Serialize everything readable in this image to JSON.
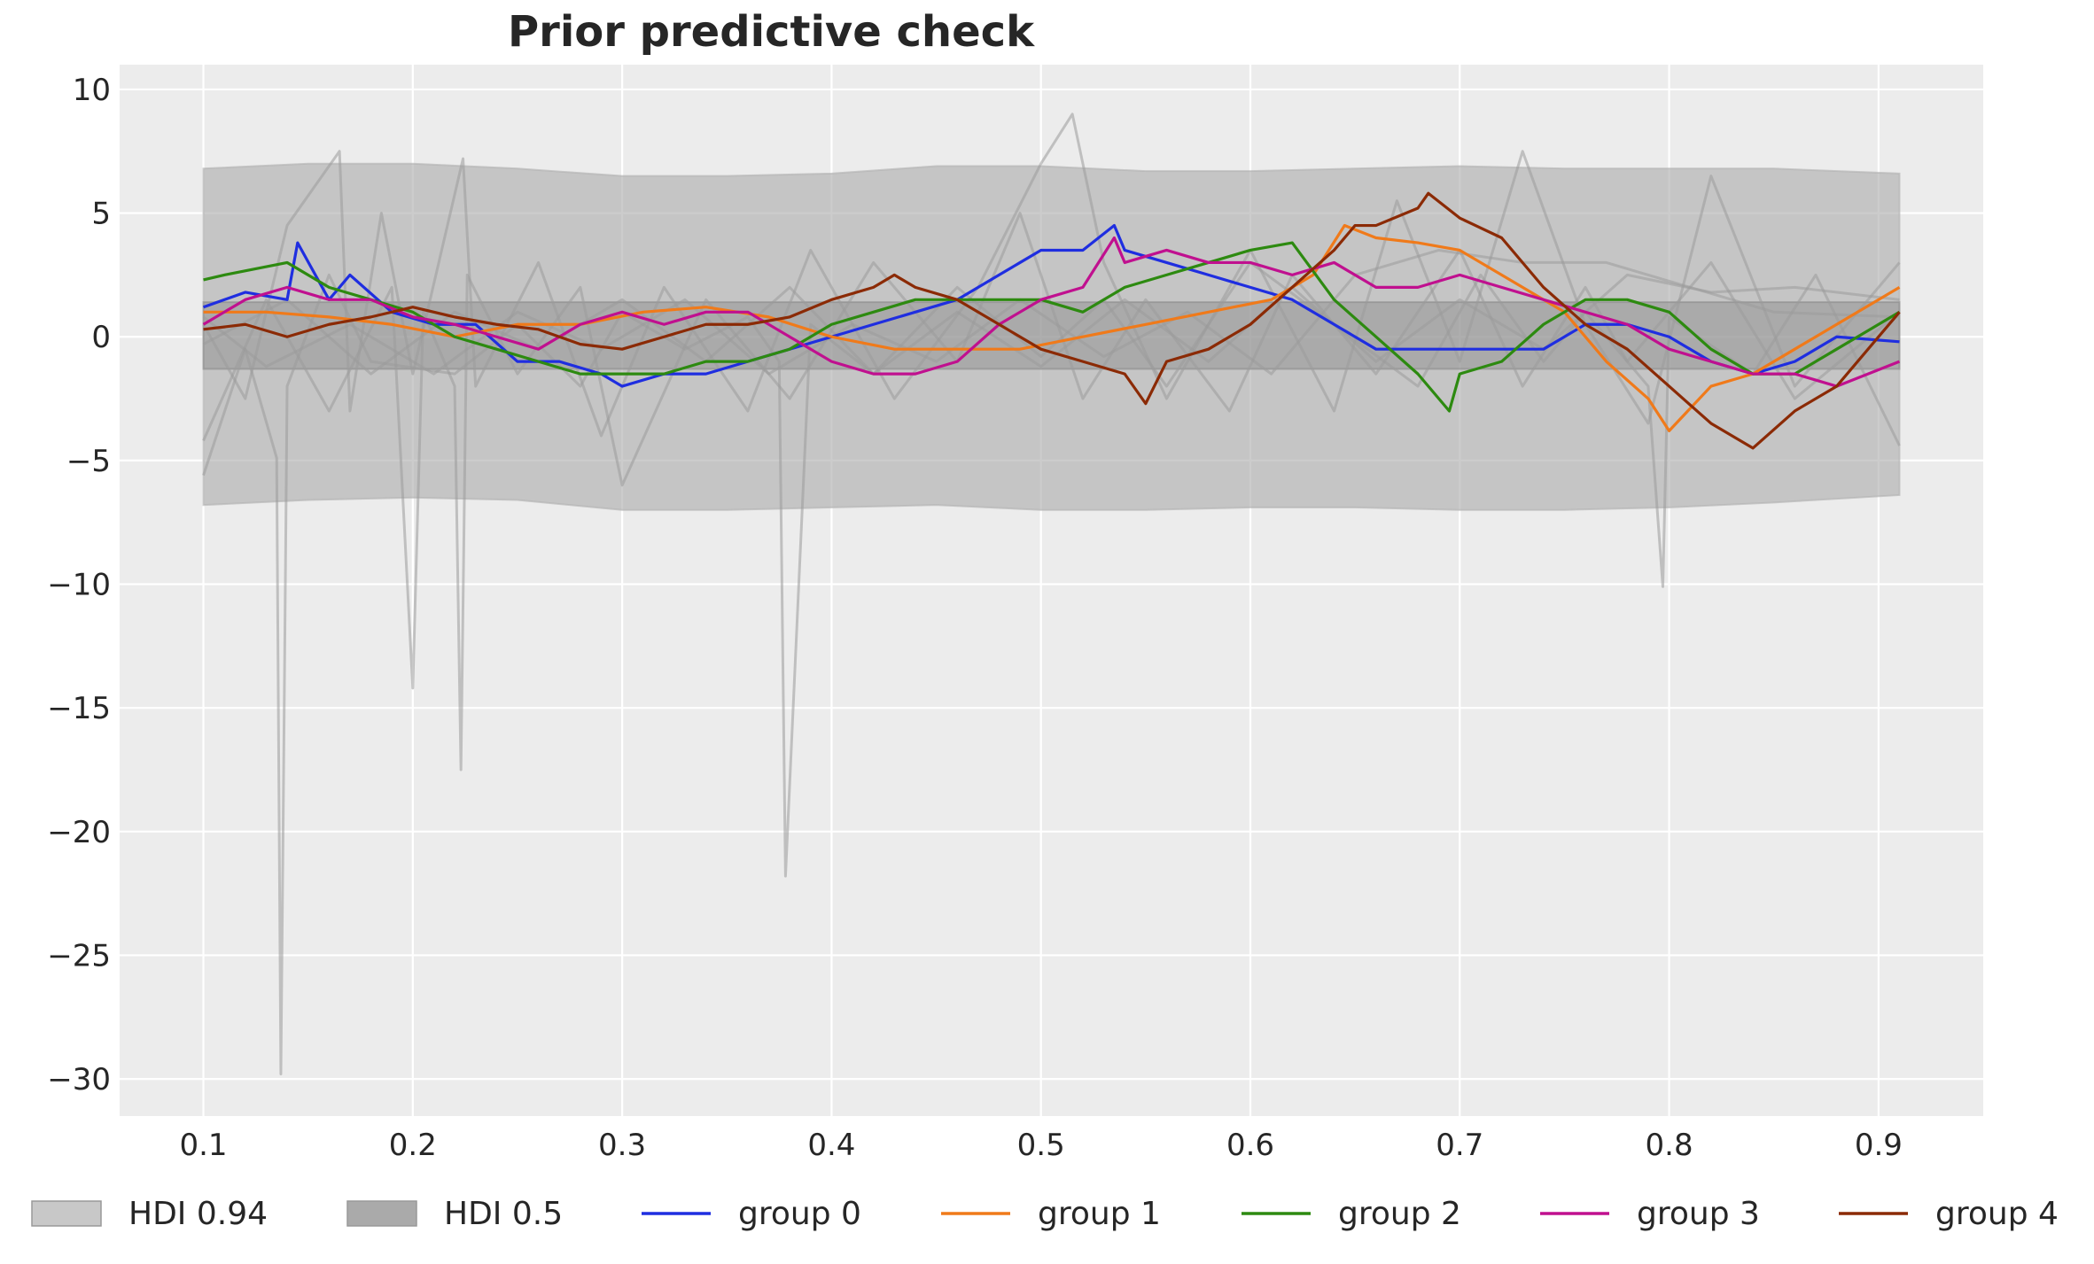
{
  "chart_data": {
    "type": "line",
    "title": "Prior predictive check",
    "xlabel": "",
    "ylabel": "",
    "xlim": [
      0.06,
      0.95
    ],
    "ylim": [
      -31.5,
      11
    ],
    "x_ticks": [
      {
        "value": 0.1,
        "label": "0.1"
      },
      {
        "value": 0.2,
        "label": "0.2"
      },
      {
        "value": 0.3,
        "label": "0.3"
      },
      {
        "value": 0.4,
        "label": "0.4"
      },
      {
        "value": 0.5,
        "label": "0.5"
      },
      {
        "value": 0.6,
        "label": "0.6"
      },
      {
        "value": 0.7,
        "label": "0.7"
      },
      {
        "value": 0.8,
        "label": "0.8"
      },
      {
        "value": 0.9,
        "label": "0.9"
      }
    ],
    "y_ticks": [
      {
        "value": 10,
        "label": "10"
      },
      {
        "value": 5,
        "label": "5"
      },
      {
        "value": 0,
        "label": "0"
      },
      {
        "value": -5,
        "label": "−5"
      },
      {
        "value": -10,
        "label": "−10"
      },
      {
        "value": -15,
        "label": "−15"
      },
      {
        "value": -20,
        "label": "−20"
      },
      {
        "value": -25,
        "label": "−25"
      },
      {
        "value": -30,
        "label": "−30"
      }
    ],
    "grid": true,
    "legend_position": "bottom",
    "bands": [
      {
        "name": "HDI 0.94",
        "color": "#b0b0b0",
        "opacity": 0.65,
        "x": [
          0.1,
          0.15,
          0.2,
          0.25,
          0.3,
          0.35,
          0.4,
          0.45,
          0.5,
          0.55,
          0.6,
          0.65,
          0.7,
          0.75,
          0.8,
          0.85,
          0.91
        ],
        "upper": [
          6.8,
          7.0,
          7.0,
          6.8,
          6.5,
          6.5,
          6.6,
          6.9,
          6.9,
          6.7,
          6.7,
          6.8,
          6.9,
          6.8,
          6.8,
          6.8,
          6.6
        ],
        "lower": [
          -6.8,
          -6.6,
          -6.5,
          -6.6,
          -7.0,
          -7.0,
          -6.9,
          -6.8,
          -7.0,
          -7.0,
          -6.9,
          -6.9,
          -7.0,
          -7.0,
          -6.9,
          -6.7,
          -6.4
        ]
      },
      {
        "name": "HDI 0.5",
        "color": "#8a8a8a",
        "opacity": 0.45,
        "x": [
          0.1,
          0.2,
          0.3,
          0.4,
          0.5,
          0.6,
          0.7,
          0.8,
          0.91
        ],
        "upper": [
          1.4,
          1.4,
          1.4,
          1.4,
          1.4,
          1.4,
          1.4,
          1.4,
          1.4
        ],
        "lower": [
          -1.3,
          -1.3,
          -1.3,
          -1.3,
          -1.3,
          -1.3,
          -1.3,
          -1.3,
          -1.3
        ]
      }
    ],
    "sample_lines": {
      "name": "prior samples",
      "color": "#9a9a9a",
      "opacity": 0.55,
      "lines": [
        {
          "x": [
            0.1,
            0.12,
            0.135,
            0.137,
            0.14,
            0.16,
            0.18,
            0.22,
            0.25,
            0.28,
            0.3,
            0.33,
            0.36,
            0.375,
            0.378,
            0.39,
            0.42,
            0.46,
            0.5,
            0.53,
            0.56,
            0.6,
            0.64,
            0.68,
            0.71,
            0.74,
            0.76,
            0.79,
            0.797,
            0.8,
            0.84,
            0.87,
            0.91
          ],
          "y": [
            -5.6,
            -0.5,
            -4.9,
            -29.8,
            -2.0,
            2.5,
            -1.0,
            -1.5,
            0.5,
            -2.0,
            1.0,
            -0.5,
            0.8,
            -1.0,
            -21.8,
            0.5,
            -1.5,
            2.0,
            -0.8,
            1.5,
            -2.0,
            3.0,
            0.5,
            -2.0,
            2.5,
            -1.0,
            1.0,
            -2.0,
            -10.1,
            0.8,
            -1.5,
            2.5,
            -4.4
          ]
        },
        {
          "x": [
            0.1,
            0.13,
            0.16,
            0.19,
            0.2,
            0.205,
            0.22,
            0.223,
            0.226,
            0.25,
            0.28,
            0.3,
            0.34,
            0.38,
            0.42,
            0.46,
            0.49,
            0.52,
            0.55,
            0.59,
            0.62,
            0.66,
            0.7,
            0.73,
            0.76,
            0.78,
            0.82,
            0.86,
            0.91
          ],
          "y": [
            -4.2,
            1.5,
            -3.0,
            2.0,
            -14.2,
            1.0,
            -2.0,
            -17.5,
            2.5,
            -1.5,
            2.0,
            -6.0,
            1.5,
            -2.5,
            3.0,
            -1.0,
            5.0,
            -2.5,
            1.5,
            -3.0,
            2.5,
            -1.5,
            3.5,
            -2.0,
            2.0,
            -1.0,
            3.0,
            -2.5,
            1.0
          ]
        },
        {
          "x": [
            0.1,
            0.12,
            0.14,
            0.165,
            0.17,
            0.185,
            0.2,
            0.224,
            0.23,
            0.26,
            0.29,
            0.32,
            0.36,
            0.39,
            0.43,
            0.47,
            0.5,
            0.515,
            0.53,
            0.56,
            0.6,
            0.64,
            0.67,
            0.7,
            0.73,
            0.76,
            0.79,
            0.82,
            0.86,
            0.91
          ],
          "y": [
            0.5,
            -2.5,
            4.5,
            7.5,
            -3.0,
            5.0,
            -1.5,
            7.2,
            -2.0,
            3.0,
            -4.0,
            2.0,
            -3.0,
            3.5,
            -2.5,
            2.0,
            7.0,
            9.0,
            3.0,
            -2.5,
            3.5,
            -3.0,
            5.5,
            -1.0,
            7.5,
            0.5,
            -3.5,
            6.5,
            -2.0,
            3.0
          ]
        },
        {
          "x": [
            0.1,
            0.14,
            0.18,
            0.22,
            0.26,
            0.3,
            0.34,
            0.38,
            0.42,
            0.46,
            0.5,
            0.54,
            0.58,
            0.62,
            0.66,
            0.7,
            0.74,
            0.78,
            0.82,
            0.86,
            0.91
          ],
          "y": [
            -0.3,
            1.5,
            -1.5,
            1.0,
            -0.5,
            1.5,
            -1.0,
            2.0,
            -1.5,
            1.0,
            -1.2,
            1.5,
            -1.0,
            2.0,
            -1.0,
            1.5,
            -0.5,
            2.5,
            1.8,
            2.0,
            1.5
          ]
        },
        {
          "x": [
            0.1,
            0.13,
            0.17,
            0.21,
            0.25,
            0.29,
            0.33,
            0.37,
            0.41,
            0.45,
            0.49,
            0.53,
            0.57,
            0.61,
            0.65,
            0.69,
            0.73,
            0.77,
            0.81,
            0.85,
            0.91
          ],
          "y": [
            0.8,
            -1.2,
            0.5,
            -1.5,
            1.0,
            -0.5,
            1.5,
            -1.5,
            0.5,
            -1.0,
            1.5,
            -0.8,
            1.0,
            -1.5,
            2.5,
            3.5,
            3.0,
            3.0,
            2.0,
            1.0,
            0.8
          ]
        }
      ]
    },
    "series": [
      {
        "name": "group 0",
        "color": "#1f2ee0",
        "x": [
          0.1,
          0.12,
          0.14,
          0.145,
          0.16,
          0.17,
          0.19,
          0.21,
          0.23,
          0.25,
          0.27,
          0.29,
          0.3,
          0.32,
          0.34,
          0.36,
          0.38,
          0.4,
          0.42,
          0.44,
          0.46,
          0.48,
          0.49,
          0.5,
          0.52,
          0.535,
          0.54,
          0.56,
          0.58,
          0.6,
          0.62,
          0.64,
          0.66,
          0.68,
          0.7,
          0.72,
          0.74,
          0.76,
          0.78,
          0.8,
          0.82,
          0.84,
          0.86,
          0.88,
          0.91
        ],
        "y": [
          1.2,
          1.8,
          1.5,
          3.8,
          1.5,
          2.5,
          1.0,
          0.5,
          0.5,
          -1.0,
          -1.0,
          -1.5,
          -2.0,
          -1.5,
          -1.5,
          -1.0,
          -0.5,
          0.0,
          0.5,
          1.0,
          1.5,
          2.5,
          3.0,
          3.5,
          3.5,
          4.5,
          3.5,
          3.0,
          2.5,
          2.0,
          1.5,
          0.5,
          -0.5,
          -0.5,
          -0.5,
          -0.5,
          -0.5,
          0.5,
          0.5,
          0.0,
          -1.0,
          -1.5,
          -1.0,
          0.0,
          -0.2
        ]
      },
      {
        "name": "group 1",
        "color": "#f07a1a",
        "x": [
          0.1,
          0.13,
          0.16,
          0.19,
          0.22,
          0.25,
          0.28,
          0.31,
          0.34,
          0.37,
          0.4,
          0.43,
          0.46,
          0.49,
          0.52,
          0.55,
          0.58,
          0.61,
          0.63,
          0.645,
          0.66,
          0.68,
          0.7,
          0.72,
          0.75,
          0.77,
          0.79,
          0.8,
          0.82,
          0.84,
          0.86,
          0.88,
          0.91
        ],
        "y": [
          1.0,
          1.0,
          0.8,
          0.5,
          0.0,
          0.5,
          0.5,
          1.0,
          1.2,
          0.8,
          0.0,
          -0.5,
          -0.5,
          -0.5,
          0.0,
          0.5,
          1.0,
          1.5,
          2.5,
          4.5,
          4.0,
          3.8,
          3.5,
          2.5,
          1.0,
          -1.0,
          -2.5,
          -3.8,
          -2.0,
          -1.5,
          -0.5,
          0.5,
          2.0
        ]
      },
      {
        "name": "group 2",
        "color": "#2d8a10",
        "x": [
          0.1,
          0.11,
          0.14,
          0.16,
          0.18,
          0.2,
          0.22,
          0.24,
          0.26,
          0.28,
          0.3,
          0.32,
          0.34,
          0.36,
          0.38,
          0.4,
          0.42,
          0.44,
          0.46,
          0.48,
          0.5,
          0.52,
          0.54,
          0.56,
          0.58,
          0.6,
          0.62,
          0.64,
          0.66,
          0.68,
          0.695,
          0.7,
          0.72,
          0.74,
          0.76,
          0.78,
          0.8,
          0.82,
          0.84,
          0.86,
          0.88,
          0.91
        ],
        "y": [
          2.3,
          2.5,
          3.0,
          2.0,
          1.5,
          1.0,
          0.0,
          -0.5,
          -1.0,
          -1.5,
          -1.5,
          -1.5,
          -1.0,
          -1.0,
          -0.5,
          0.5,
          1.0,
          1.5,
          1.5,
          1.5,
          1.5,
          1.0,
          2.0,
          2.5,
          3.0,
          3.5,
          3.8,
          1.5,
          0.0,
          -1.5,
          -3.0,
          -1.5,
          -1.0,
          0.5,
          1.5,
          1.5,
          1.0,
          -0.5,
          -1.5,
          -1.5,
          -0.5,
          1.0
        ]
      },
      {
        "name": "group 3",
        "color": "#c0108f",
        "x": [
          0.1,
          0.12,
          0.14,
          0.16,
          0.18,
          0.2,
          0.22,
          0.24,
          0.26,
          0.28,
          0.3,
          0.32,
          0.34,
          0.36,
          0.38,
          0.4,
          0.42,
          0.44,
          0.46,
          0.48,
          0.5,
          0.52,
          0.535,
          0.54,
          0.56,
          0.58,
          0.6,
          0.62,
          0.64,
          0.66,
          0.68,
          0.7,
          0.72,
          0.74,
          0.76,
          0.78,
          0.8,
          0.82,
          0.84,
          0.86,
          0.88,
          0.91
        ],
        "y": [
          0.5,
          1.5,
          2.0,
          1.5,
          1.5,
          0.8,
          0.5,
          0.0,
          -0.5,
          0.5,
          1.0,
          0.5,
          1.0,
          1.0,
          0.0,
          -1.0,
          -1.5,
          -1.5,
          -1.0,
          0.5,
          1.5,
          2.0,
          4.0,
          3.0,
          3.5,
          3.0,
          3.0,
          2.5,
          3.0,
          2.0,
          2.0,
          2.5,
          2.0,
          1.5,
          1.0,
          0.5,
          -0.5,
          -1.0,
          -1.5,
          -1.5,
          -2.0,
          -1.0
        ]
      },
      {
        "name": "group 4",
        "color": "#8b2a05",
        "x": [
          0.1,
          0.12,
          0.14,
          0.16,
          0.18,
          0.2,
          0.22,
          0.24,
          0.26,
          0.28,
          0.3,
          0.32,
          0.34,
          0.36,
          0.38,
          0.4,
          0.42,
          0.43,
          0.44,
          0.46,
          0.48,
          0.5,
          0.52,
          0.54,
          0.55,
          0.56,
          0.58,
          0.6,
          0.62,
          0.64,
          0.65,
          0.66,
          0.68,
          0.685,
          0.7,
          0.72,
          0.74,
          0.76,
          0.78,
          0.8,
          0.82,
          0.84,
          0.86,
          0.88,
          0.91
        ],
        "y": [
          0.3,
          0.5,
          0.0,
          0.5,
          0.8,
          1.2,
          0.8,
          0.5,
          0.3,
          -0.3,
          -0.5,
          0.0,
          0.5,
          0.5,
          0.8,
          1.5,
          2.0,
          2.5,
          2.0,
          1.5,
          0.5,
          -0.5,
          -1.0,
          -1.5,
          -2.7,
          -1.0,
          -0.5,
          0.5,
          2.0,
          3.5,
          4.5,
          4.5,
          5.2,
          5.8,
          4.8,
          4.0,
          2.0,
          0.5,
          -0.5,
          -2.0,
          -3.5,
          -4.5,
          -3.0,
          -2.0,
          1.0
        ]
      }
    ],
    "legend": [
      {
        "label": "HDI 0.94",
        "kind": "patch",
        "color": "#c8c8c8"
      },
      {
        "label": "HDI 0.5",
        "kind": "patch",
        "color": "#aaaaaa"
      },
      {
        "label": "group 0",
        "kind": "line",
        "color": "#1f2ee0"
      },
      {
        "label": "group 1",
        "kind": "line",
        "color": "#f07a1a"
      },
      {
        "label": "group 2",
        "kind": "line",
        "color": "#2d8a10"
      },
      {
        "label": "group 3",
        "kind": "line",
        "color": "#c0108f"
      },
      {
        "label": "group 4",
        "kind": "line",
        "color": "#8b2a05"
      }
    ]
  }
}
